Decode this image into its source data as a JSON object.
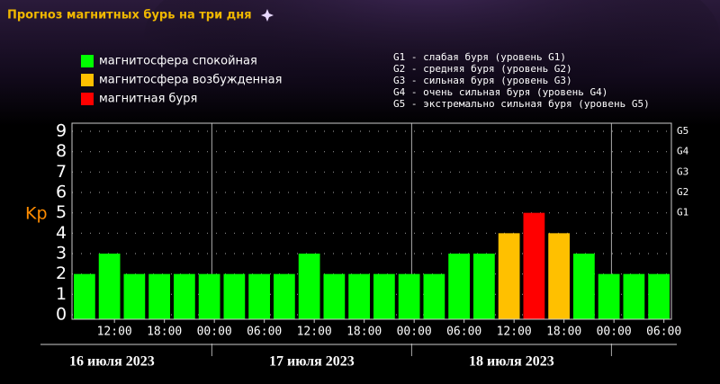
{
  "chart_data": {
    "type": "bar",
    "title": "Прогноз магнитных бурь на три дня",
    "y_label": "Kp",
    "values": [
      2,
      3,
      2,
      2,
      2,
      2,
      2,
      2,
      2,
      3,
      2,
      2,
      2,
      2,
      2,
      3,
      3,
      4,
      5,
      4,
      3,
      2,
      2,
      2
    ],
    "colors": [
      "#00ff00",
      "#00ff00",
      "#00ff00",
      "#00ff00",
      "#00ff00",
      "#00ff00",
      "#00ff00",
      "#00ff00",
      "#00ff00",
      "#00ff00",
      "#00ff00",
      "#00ff00",
      "#00ff00",
      "#00ff00",
      "#00ff00",
      "#00ff00",
      "#00ff00",
      "#ffc000",
      "#ff0000",
      "#ffc000",
      "#00ff00",
      "#00ff00",
      "#00ff00",
      "#00ff00"
    ],
    "ylim": [
      0,
      9
    ],
    "yticks": [
      0,
      1,
      2,
      3,
      4,
      5,
      6,
      7,
      8,
      9
    ],
    "y2ticks": [
      {
        "value": 5,
        "label": "G1"
      },
      {
        "value": 6,
        "label": "G2"
      },
      {
        "value": 7,
        "label": "G3"
      },
      {
        "value": 8,
        "label": "G4"
      },
      {
        "value": 9,
        "label": "G5"
      }
    ],
    "xtick_labels": [
      "12:00",
      "18:00",
      "00:00",
      "06:00",
      "12:00",
      "18:00",
      "00:00",
      "06:00",
      "12:00",
      "18:00",
      "00:00",
      "06:00"
    ],
    "days": [
      "16 июля 2023",
      "17 июля 2023",
      "18 июля 2023"
    ],
    "grid": true,
    "legend": [
      {
        "name": "магнитосфера спокойная",
        "color": "#00ff00"
      },
      {
        "name": "магнитосфера возбужденная",
        "color": "#ffc000"
      },
      {
        "name": "магнитная буря",
        "color": "#ff0000"
      }
    ],
    "storm_scale": [
      "G1 - слабая буря (уровень G1)",
      "G2 - средняя буря (уровень G2)",
      "G3 - сильная буря (уровень G3)",
      "G4 - очень сильная буря (уровень G4)",
      "G5 - экстремально сильная буря (уровень G5)"
    ]
  }
}
